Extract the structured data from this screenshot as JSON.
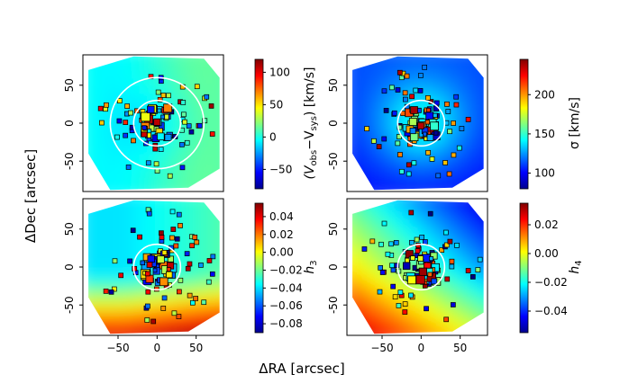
{
  "chart_data": {
    "type": "heatmap",
    "title": "",
    "xlabel": "ΔRA [arcsec]",
    "ylabel": "ΔDec [arcsec]",
    "xlim": [
      -95,
      85
    ],
    "ylim": [
      -90,
      90
    ],
    "x_ticks": [
      -50,
      0,
      50
    ],
    "y_ticks": [
      -50,
      0,
      50
    ],
    "panels": [
      {
        "id": "velocity",
        "quantity": "(V_obs − V_sys) [km/s]",
        "colorbar_label_parts": [
          "(V",
          "obs",
          "−V",
          "sys",
          ") [km/s]"
        ],
        "colorbar_range": [
          -80,
          120
        ],
        "colorbar_ticks": [
          -50,
          0,
          50,
          100
        ],
        "colorbar_tick_labels": [
          "−50",
          "0",
          "50",
          "100"
        ],
        "circles_arcsec": [
          30,
          60
        ]
      },
      {
        "id": "dispersion",
        "quantity": "σ [km/s]",
        "colorbar_label_parts": [
          "σ [km/s]"
        ],
        "colorbar_range": [
          80,
          245
        ],
        "colorbar_ticks": [
          100,
          150,
          200
        ],
        "colorbar_tick_labels": [
          "100",
          "150",
          "200"
        ],
        "circles_arcsec": [
          30
        ]
      },
      {
        "id": "h3",
        "quantity": "h3",
        "colorbar_label_parts": [
          "h",
          "3"
        ],
        "colorbar_range": [
          -0.09,
          0.055
        ],
        "colorbar_ticks": [
          -0.08,
          -0.06,
          -0.04,
          -0.02,
          0.0,
          0.02,
          0.04
        ],
        "colorbar_tick_labels": [
          "−0.08",
          "−0.06",
          "−0.04",
          "−0.02",
          "0.00",
          "0.02",
          "0.04"
        ],
        "circles_arcsec": [
          30
        ]
      },
      {
        "id": "h4",
        "quantity": "h4",
        "colorbar_label_parts": [
          "h",
          "4"
        ],
        "colorbar_range": [
          -0.055,
          0.035
        ],
        "colorbar_ticks": [
          -0.04,
          -0.02,
          0.0,
          0.02
        ],
        "colorbar_tick_labels": [
          "−0.04",
          "−0.02",
          "0.00",
          "0.02"
        ],
        "circles_arcsec": [
          30
        ]
      }
    ]
  }
}
